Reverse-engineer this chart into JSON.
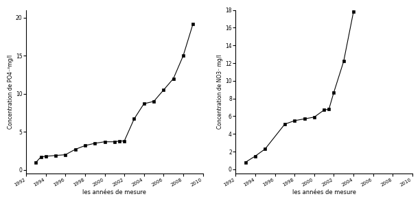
{
  "phosphate": {
    "years": [
      1993,
      1993.5,
      1994,
      1995,
      1996,
      1997,
      1998,
      1999,
      2000,
      2001,
      2001.5,
      2002,
      2003,
      2004,
      2005,
      2006,
      2007,
      2008,
      2009
    ],
    "values": [
      1.0,
      1.7,
      1.8,
      1.9,
      2.0,
      2.7,
      3.2,
      3.5,
      3.7,
      3.7,
      3.8,
      3.8,
      6.7,
      8.7,
      9.0,
      10.5,
      12.0,
      15.0,
      19.2
    ],
    "ylabel": "Concentration de PO4⁻³mg/l",
    "xlabel": "les années de mesure",
    "xlim": [
      1992,
      2010
    ],
    "ylim": [
      -0.5,
      21
    ],
    "xticks": [
      1992,
      1994,
      1996,
      1998,
      2000,
      2002,
      2004,
      2006,
      2008,
      2010
    ],
    "yticks": [
      0,
      5,
      10,
      15,
      20
    ]
  },
  "nitrate": {
    "years": [
      1993,
      1994,
      1995,
      1997,
      1998,
      1999,
      2000,
      2001,
      2001.5,
      2002,
      2003,
      2004
    ],
    "values": [
      0.8,
      1.5,
      2.3,
      5.1,
      5.5,
      5.7,
      5.9,
      6.7,
      6.8,
      8.7,
      12.2,
      17.8
    ],
    "ylabel": "Concentration de NO3⁻ mg/l",
    "xlabel": "les années de mesure",
    "xlim": [
      1992,
      2010
    ],
    "ylim": [
      -0.5,
      18
    ],
    "xticks": [
      1992,
      1994,
      1996,
      1998,
      2000,
      2002,
      2004,
      2006,
      2008,
      2010
    ],
    "yticks": [
      0,
      2,
      4,
      6,
      8,
      10,
      12,
      14,
      16,
      18
    ]
  },
  "line_color": "#000000",
  "marker": "s",
  "markersize": 3,
  "marker_color": "#000000",
  "linewidth": 0.8,
  "fontsize_label": 6,
  "fontsize_tick": 5.5,
  "fontsize_ylabel": 5.5
}
